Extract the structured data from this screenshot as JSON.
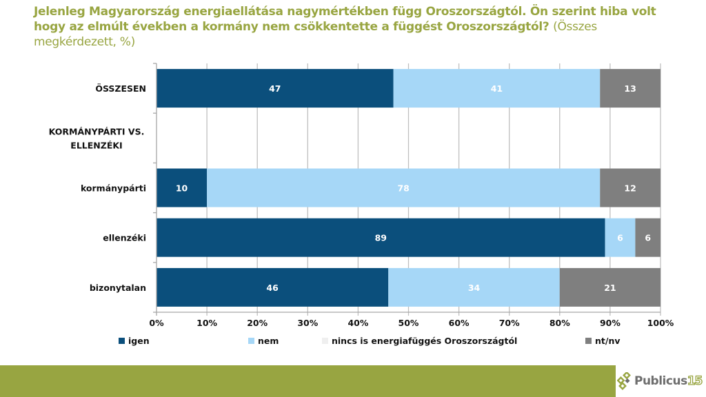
{
  "title": {
    "main": "Jelenleg Magyarország energiaellátása nagymértékben függ Oroszországtól. Ön szerint hiba volt hogy az elmúlt években a kormány nem csökkentette a függést Oroszországtól?",
    "sub": "(Összes megkérdezett, %)"
  },
  "colors": {
    "title": "#98A541",
    "igen": "#0B4F7C",
    "nem": "#A6D7F7",
    "nincs": "#EFEFEF",
    "ntnv": "#7F7F7F",
    "footer": "#98A541"
  },
  "chart_data": {
    "type": "bar",
    "orientation": "horizontal",
    "stacked": true,
    "title": "Jelenleg Magyarország energiaellátása nagymértékben függ Oroszországtól. Ön szerint hiba volt hogy az elmúlt években a kormány nem csökkentette a függést Oroszországtól? (Összes megkérdezett, %)",
    "xlabel": "",
    "ylabel": "",
    "xlim": [
      0,
      100
    ],
    "x_ticks": [
      "0%",
      "10%",
      "20%",
      "30%",
      "40%",
      "50%",
      "60%",
      "70%",
      "80%",
      "90%",
      "100%"
    ],
    "grid": true,
    "legend_position": "bottom",
    "categories": [
      "ÖSSZESEN",
      "KORMÁNYPÁRTI VS. ELLENZÉKI",
      "kormánypárti",
      "ellenzéki",
      "bizonytalan"
    ],
    "category_lines": [
      [
        "ÖSSZESEN"
      ],
      [
        "KORMÁNYPÁRTI VS.",
        "ELLENZÉKI"
      ],
      [
        "kormánypárti"
      ],
      [
        "ellenzéki"
      ],
      [
        "bizonytalan"
      ]
    ],
    "series": [
      {
        "name": "igen",
        "key": "igen",
        "values": [
          47,
          null,
          10,
          89,
          46
        ]
      },
      {
        "name": "nem",
        "key": "nem",
        "values": [
          41,
          null,
          78,
          6,
          34
        ]
      },
      {
        "name": "nincs is energiafüggés Oroszországtól",
        "key": "nincs",
        "values": [
          0,
          null,
          0,
          0,
          0
        ]
      },
      {
        "name": "nt/nv",
        "key": "ntnv",
        "values": [
          13,
          null,
          12,
          6,
          21
        ]
      }
    ]
  },
  "logo": {
    "text": "Publicus",
    "number": "15"
  }
}
